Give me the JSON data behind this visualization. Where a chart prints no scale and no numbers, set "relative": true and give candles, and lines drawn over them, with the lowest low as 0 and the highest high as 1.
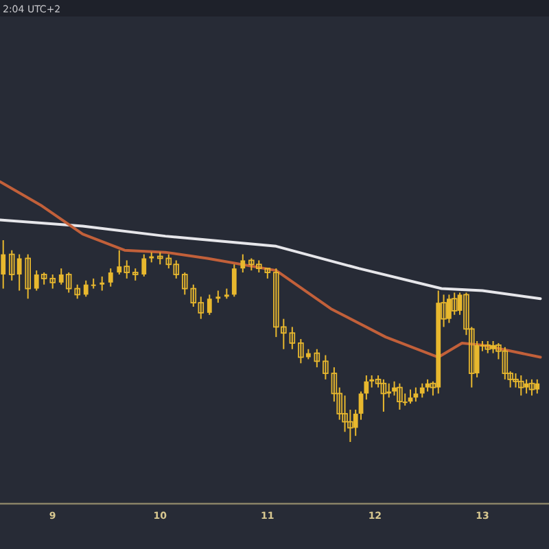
{
  "chart_data": {
    "type": "candlestick",
    "relative": true,
    "color": "#e8b82e",
    "annotations": [
      "2:04 UTC+2"
    ],
    "xlim": [
      8.51,
      13.62
    ],
    "xticks": [
      9,
      10,
      11,
      12,
      13
    ],
    "x": [
      8.54,
      8.62,
      8.69,
      8.77,
      8.85,
      8.92,
      9.0,
      9.08,
      9.15,
      9.23,
      9.31,
      9.38,
      9.46,
      9.54,
      9.62,
      9.69,
      9.77,
      9.85,
      9.92,
      10.0,
      10.08,
      10.15,
      10.23,
      10.31,
      10.38,
      10.46,
      10.54,
      10.62,
      10.69,
      10.77,
      10.85,
      10.92,
      11.0,
      11.08,
      11.15,
      11.23,
      11.31,
      11.38,
      11.46,
      11.54,
      11.62,
      11.67,
      11.72,
      11.77,
      11.82,
      11.87,
      11.92,
      11.97,
      12.03,
      12.08,
      12.13,
      12.18,
      12.23,
      12.28,
      12.33,
      12.38,
      12.44,
      12.49,
      12.54,
      12.59,
      12.64,
      12.69,
      12.74,
      12.79,
      12.85,
      12.9,
      12.95,
      13.0,
      13.05,
      13.1,
      13.15,
      13.21,
      13.26,
      13.31,
      13.36,
      13.41,
      13.46,
      13.51
    ],
    "ohlc": [
      [
        0.83,
        1.0,
        0.76,
        0.93
      ],
      [
        0.93,
        0.95,
        0.8,
        0.83
      ],
      [
        0.83,
        0.93,
        0.75,
        0.91
      ],
      [
        0.91,
        0.93,
        0.71,
        0.76
      ],
      [
        0.76,
        0.85,
        0.75,
        0.83
      ],
      [
        0.83,
        0.84,
        0.78,
        0.81
      ],
      [
        0.81,
        0.83,
        0.76,
        0.79
      ],
      [
        0.79,
        0.86,
        0.78,
        0.83
      ],
      [
        0.83,
        0.84,
        0.74,
        0.76
      ],
      [
        0.76,
        0.78,
        0.71,
        0.73
      ],
      [
        0.73,
        0.8,
        0.72,
        0.78
      ],
      [
        0.78,
        0.81,
        0.76,
        0.78
      ],
      [
        0.78,
        0.82,
        0.75,
        0.79
      ],
      [
        0.79,
        0.86,
        0.77,
        0.84
      ],
      [
        0.84,
        0.95,
        0.83,
        0.87
      ],
      [
        0.87,
        0.9,
        0.81,
        0.84
      ],
      [
        0.84,
        0.86,
        0.8,
        0.83
      ],
      [
        0.83,
        0.93,
        0.82,
        0.91
      ],
      [
        0.91,
        0.94,
        0.89,
        0.92
      ],
      [
        0.92,
        0.94,
        0.88,
        0.91
      ],
      [
        0.91,
        0.93,
        0.86,
        0.88
      ],
      [
        0.88,
        0.9,
        0.81,
        0.83
      ],
      [
        0.83,
        0.84,
        0.73,
        0.76
      ],
      [
        0.76,
        0.78,
        0.67,
        0.69
      ],
      [
        0.69,
        0.72,
        0.61,
        0.64
      ],
      [
        0.64,
        0.73,
        0.63,
        0.71
      ],
      [
        0.71,
        0.75,
        0.69,
        0.72
      ],
      [
        0.72,
        0.76,
        0.71,
        0.73
      ],
      [
        0.73,
        0.88,
        0.72,
        0.86
      ],
      [
        0.86,
        0.93,
        0.84,
        0.9
      ],
      [
        0.9,
        0.91,
        0.85,
        0.88
      ],
      [
        0.88,
        0.9,
        0.84,
        0.86
      ],
      [
        0.86,
        0.86,
        0.81,
        0.84
      ],
      [
        0.84,
        0.86,
        0.52,
        0.57
      ],
      [
        0.57,
        0.61,
        0.46,
        0.54
      ],
      [
        0.54,
        0.57,
        0.46,
        0.49
      ],
      [
        0.49,
        0.51,
        0.39,
        0.42
      ],
      [
        0.42,
        0.46,
        0.41,
        0.44
      ],
      [
        0.44,
        0.46,
        0.37,
        0.4
      ],
      [
        0.4,
        0.43,
        0.31,
        0.34
      ],
      [
        0.34,
        0.37,
        0.2,
        0.24
      ],
      [
        0.24,
        0.27,
        0.11,
        0.14
      ],
      [
        0.14,
        0.23,
        0.05,
        0.1
      ],
      [
        0.1,
        0.16,
        0.0,
        0.07
      ],
      [
        0.07,
        0.16,
        0.03,
        0.14
      ],
      [
        0.14,
        0.25,
        0.11,
        0.24
      ],
      [
        0.24,
        0.33,
        0.21,
        0.3
      ],
      [
        0.3,
        0.33,
        0.27,
        0.31
      ],
      [
        0.31,
        0.33,
        0.27,
        0.29
      ],
      [
        0.29,
        0.31,
        0.15,
        0.24
      ],
      [
        0.24,
        0.29,
        0.22,
        0.25
      ],
      [
        0.25,
        0.3,
        0.23,
        0.27
      ],
      [
        0.27,
        0.29,
        0.16,
        0.2
      ],
      [
        0.2,
        0.24,
        0.18,
        0.2
      ],
      [
        0.2,
        0.26,
        0.19,
        0.22
      ],
      [
        0.22,
        0.27,
        0.2,
        0.24
      ],
      [
        0.24,
        0.29,
        0.22,
        0.27
      ],
      [
        0.27,
        0.31,
        0.25,
        0.29
      ],
      [
        0.29,
        0.3,
        0.23,
        0.27
      ],
      [
        0.27,
        0.75,
        0.24,
        0.69
      ],
      [
        0.69,
        0.73,
        0.57,
        0.61
      ],
      [
        0.61,
        0.73,
        0.59,
        0.71
      ],
      [
        0.71,
        0.74,
        0.63,
        0.65
      ],
      [
        0.65,
        0.74,
        0.63,
        0.73
      ],
      [
        0.73,
        0.74,
        0.53,
        0.56
      ],
      [
        0.56,
        0.57,
        0.27,
        0.34
      ],
      [
        0.34,
        0.5,
        0.32,
        0.48
      ],
      [
        0.48,
        0.5,
        0.45,
        0.48
      ],
      [
        0.48,
        0.5,
        0.44,
        0.46
      ],
      [
        0.46,
        0.5,
        0.44,
        0.48
      ],
      [
        0.48,
        0.49,
        0.41,
        0.45
      ],
      [
        0.45,
        0.47,
        0.31,
        0.34
      ],
      [
        0.34,
        0.35,
        0.27,
        0.31
      ],
      [
        0.31,
        0.34,
        0.27,
        0.3
      ],
      [
        0.3,
        0.33,
        0.23,
        0.27
      ],
      [
        0.27,
        0.31,
        0.24,
        0.29
      ],
      [
        0.29,
        0.31,
        0.23,
        0.26
      ],
      [
        0.26,
        0.31,
        0.24,
        0.29
      ]
    ],
    "series": [
      {
        "type": "line",
        "color": "#e6e6ea",
        "x": [
          8.51,
          9.28,
          10.05,
          11.08,
          11.85,
          12.62,
          13.0,
          13.54
        ],
        "values": [
          1.1,
          1.07,
          1.02,
          0.97,
          0.86,
          0.76,
          0.75,
          0.71
        ]
      },
      {
        "type": "line",
        "color": "#c2603a",
        "x": [
          8.51,
          8.9,
          9.28,
          9.67,
          10.05,
          10.44,
          11.08,
          11.59,
          12.1,
          12.49,
          12.59,
          12.81,
          13.0,
          13.54
        ],
        "values": [
          1.29,
          1.17,
          1.03,
          0.95,
          0.94,
          0.91,
          0.85,
          0.66,
          0.52,
          0.44,
          0.42,
          0.49,
          0.48,
          0.42
        ]
      }
    ]
  }
}
